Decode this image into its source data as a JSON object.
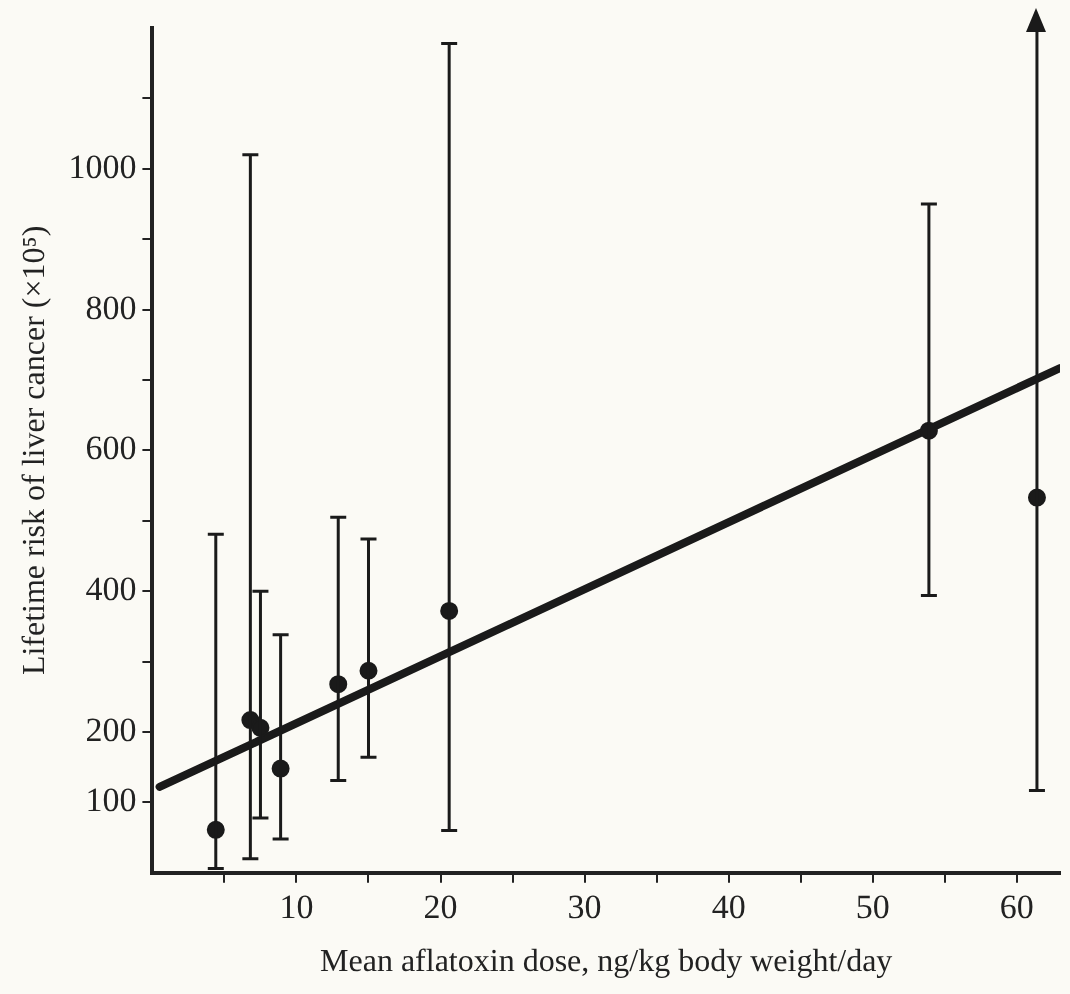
{
  "chart_data": {
    "type": "scatter",
    "xlabel": "Mean aflatoxin dose, ng/kg body weight/day",
    "ylabel": "Lifetime risk of liver cancer (×10⁵)",
    "xlim": [
      0,
      63
    ],
    "ylim": [
      0,
      1200
    ],
    "xticks": [
      {
        "value": 5,
        "label": null
      },
      10,
      {
        "value": 15,
        "label": null
      },
      20,
      {
        "value": 25,
        "label": null
      },
      30,
      {
        "value": 35,
        "label": null
      },
      40,
      {
        "value": 45,
        "label": null
      },
      50,
      {
        "value": 55,
        "label": null
      },
      60
    ],
    "yticks": [
      100,
      200,
      {
        "value": 300,
        "label": null
      },
      400,
      {
        "value": 500,
        "label": null
      },
      600,
      {
        "value": 700,
        "label": null
      },
      800,
      {
        "value": 900,
        "label": null
      },
      1000,
      {
        "value": 1100,
        "label": null
      }
    ],
    "grid": false,
    "legend": false,
    "series": [
      {
        "type": "scatter",
        "color": "#1a1a1a",
        "marker": "circle",
        "x": [
          4.4,
          6.8,
          7.5,
          8.9,
          12.9,
          15.0,
          20.6,
          53.9,
          61.4
        ],
        "values": [
          61,
          217,
          206,
          148,
          268,
          287,
          372,
          628,
          533
        ],
        "errors": [
          [
            6,
            481
          ],
          [
            20,
            1020
          ],
          [
            78,
            400
          ],
          [
            48,
            338
          ],
          [
            131,
            505
          ],
          [
            164,
            474
          ],
          [
            60,
            1178
          ],
          [
            394,
            950
          ],
          [
            117,
            1200
          ]
        ]
      },
      {
        "type": "line",
        "color": "#1a1a1a",
        "marker": "none",
        "line_style": "solid",
        "x": [
          0.5,
          63
        ],
        "values": [
          122,
          717
        ]
      }
    ]
  }
}
